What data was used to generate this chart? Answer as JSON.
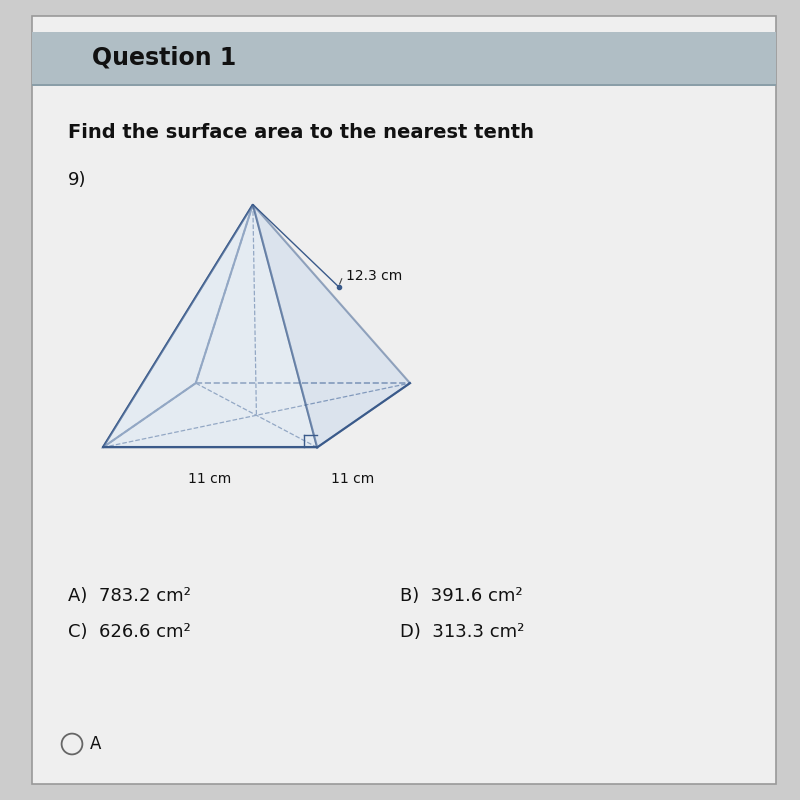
{
  "header_text": "Question 1",
  "question_text": "Find the surface area to the nearest tenth",
  "problem_number": "9)",
  "dimension_slant": "12.3 cm",
  "dimension_base1": "11 cm",
  "dimension_base2": "11 cm",
  "choices_left": [
    "A)  783.2 cm²",
    "C)  626.6 cm²"
  ],
  "choices_right": [
    "B)  391.6 cm²",
    "D)  313.3 cm²"
  ],
  "selected": "A",
  "bg_color": "#cccccc",
  "header_bg": "#b0bec5",
  "card_bg": "#efefef",
  "pyramid_color": "#3a5a8a",
  "pyramid_fill_front": "#dce8f5",
  "pyramid_fill_right": "#c8d8ed",
  "text_color": "#111111"
}
